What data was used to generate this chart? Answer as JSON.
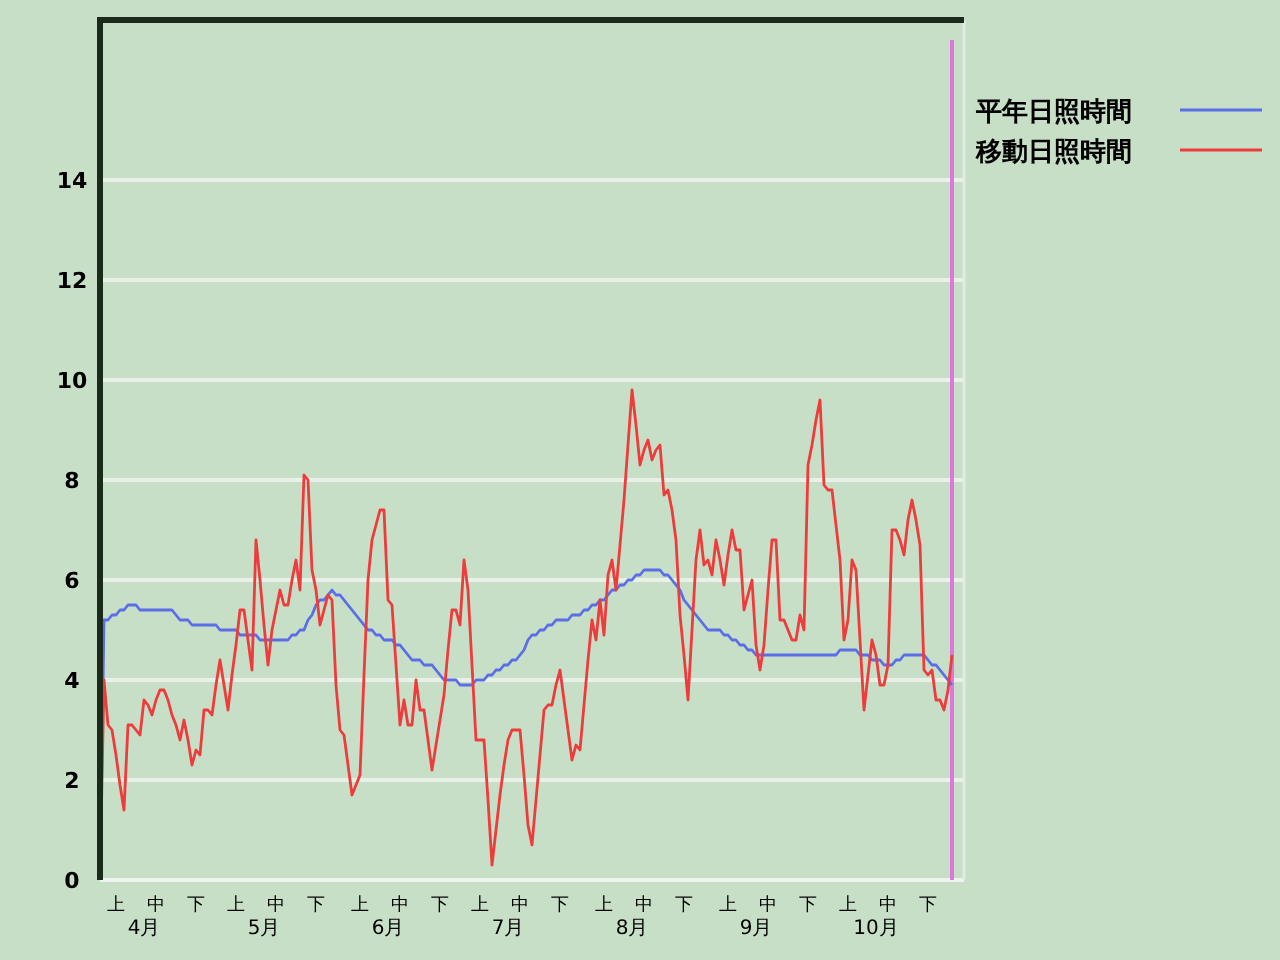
{
  "chart_data": {
    "type": "line",
    "ylim": [
      0,
      17.2
    ],
    "yticks": [
      0,
      2,
      4,
      6,
      8,
      10,
      12,
      14
    ],
    "categories": [
      null,
      null,
      null,
      null,
      "上",
      null,
      null,
      null,
      null,
      null,
      null,
      null,
      null,
      null,
      "中",
      null,
      null,
      null,
      null,
      null,
      null,
      null,
      null,
      null,
      "下",
      null,
      null,
      null,
      null,
      null,
      null,
      null,
      null,
      null,
      "上",
      null,
      null,
      null,
      null,
      null,
      null,
      null,
      null,
      null,
      "中",
      null,
      null,
      null,
      null,
      null,
      null,
      null,
      null,
      null,
      "下",
      null,
      null,
      null,
      null,
      null,
      null,
      null,
      null,
      null,
      null,
      "上",
      null,
      null,
      null,
      null,
      null,
      null,
      null,
      null,
      null,
      "中",
      null,
      null,
      null,
      null,
      null,
      null,
      null,
      null,
      null,
      "下",
      null,
      null,
      null,
      null,
      null,
      null,
      null,
      null,
      null,
      "上",
      null,
      null,
      null,
      null,
      null,
      null,
      null,
      null,
      null,
      "中",
      null,
      null,
      null,
      null,
      null,
      null,
      null,
      null,
      null,
      "下",
      null,
      null,
      null,
      null,
      null,
      null,
      null,
      null,
      null,
      null,
      "上",
      null,
      null,
      null,
      null,
      null,
      null,
      null,
      null,
      null,
      "中",
      null,
      null,
      null,
      null,
      null,
      null,
      null,
      null,
      null,
      "下",
      null,
      null,
      null,
      null,
      null,
      null,
      null,
      null,
      null,
      null,
      "上",
      null,
      null,
      null,
      null,
      null,
      null,
      null,
      null,
      null,
      "中",
      null,
      null,
      null,
      null,
      null,
      null,
      null,
      null,
      null,
      "下",
      null,
      null,
      null,
      null,
      null,
      null,
      null,
      null,
      null,
      "上",
      null,
      null,
      null,
      null,
      null,
      null,
      null,
      null,
      null,
      "中",
      null,
      null,
      null,
      null,
      null,
      null,
      null,
      null,
      null,
      "下",
      null,
      null,
      null,
      null,
      null,
      null
    ],
    "annotations": [
      "4月",
      "5月",
      "6月",
      "7月",
      "8月",
      "9月",
      "10月"
    ],
    "grid": "y",
    "legend": "top right",
    "marker": "none",
    "line_style": "solid",
    "series": [
      {
        "name": "平年日照時間",
        "color": "#5a6ee8",
        "values": [
          0,
          5.2,
          5.2,
          5.3,
          5.3,
          5.4,
          5.4,
          5.5,
          5.5,
          5.5,
          5.4,
          5.4,
          5.4,
          5.4,
          5.4,
          5.4,
          5.4,
          5.4,
          5.4,
          5.3,
          5.2,
          5.2,
          5.2,
          5.1,
          5.1,
          5.1,
          5.1,
          5.1,
          5.1,
          5.1,
          5.0,
          5.0,
          5.0,
          5.0,
          5.0,
          4.9,
          4.9,
          4.9,
          4.9,
          4.9,
          4.8,
          4.8,
          4.8,
          4.8,
          4.8,
          4.8,
          4.8,
          4.8,
          4.9,
          4.9,
          5.0,
          5.0,
          5.2,
          5.3,
          5.5,
          5.6,
          5.6,
          5.7,
          5.8,
          5.7,
          5.7,
          5.6,
          5.5,
          5.4,
          5.3,
          5.2,
          5.1,
          5.0,
          5.0,
          4.9,
          4.9,
          4.8,
          4.8,
          4.8,
          4.7,
          4.7,
          4.6,
          4.5,
          4.4,
          4.4,
          4.4,
          4.3,
          4.3,
          4.3,
          4.2,
          4.1,
          4.0,
          4.0,
          4.0,
          4.0,
          3.9,
          3.9,
          3.9,
          3.9,
          4.0,
          4.0,
          4.0,
          4.1,
          4.1,
          4.2,
          4.2,
          4.3,
          4.3,
          4.4,
          4.4,
          4.5,
          4.6,
          4.8,
          4.9,
          4.9,
          5.0,
          5.0,
          5.1,
          5.1,
          5.2,
          5.2,
          5.2,
          5.2,
          5.3,
          5.3,
          5.3,
          5.4,
          5.4,
          5.5,
          5.5,
          5.6,
          5.6,
          5.7,
          5.8,
          5.8,
          5.9,
          5.9,
          6.0,
          6.0,
          6.1,
          6.1,
          6.2,
          6.2,
          6.2,
          6.2,
          6.2,
          6.1,
          6.1,
          6.0,
          5.9,
          5.8,
          5.6,
          5.5,
          5.4,
          5.3,
          5.2,
          5.1,
          5.0,
          5.0,
          5.0,
          5.0,
          4.9,
          4.9,
          4.8,
          4.8,
          4.7,
          4.7,
          4.6,
          4.6,
          4.5,
          4.5,
          4.5,
          4.5,
          4.5,
          4.5,
          4.5,
          4.5,
          4.5,
          4.5,
          4.5,
          4.5,
          4.5,
          4.5,
          4.5,
          4.5,
          4.5,
          4.5,
          4.5,
          4.5,
          4.5,
          4.6,
          4.6,
          4.6,
          4.6,
          4.6,
          4.5,
          4.5,
          4.5,
          4.4,
          4.4,
          4.4,
          4.3,
          4.3,
          4.3,
          4.4,
          4.4,
          4.5,
          4.5,
          4.5,
          4.5,
          4.5,
          4.5,
          4.4,
          4.3,
          4.3,
          4.2,
          4.1,
          4.0,
          3.9
        ]
      },
      {
        "name": "移動日照時間",
        "color": "#ee3c3c",
        "values": [
          0,
          4.0,
          3.1,
          3.0,
          2.5,
          1.9,
          1.4,
          3.1,
          3.1,
          3.0,
          2.9,
          3.6,
          3.5,
          3.3,
          3.6,
          3.8,
          3.8,
          3.6,
          3.3,
          3.1,
          2.8,
          3.2,
          2.8,
          2.3,
          2.6,
          2.5,
          3.4,
          3.4,
          3.3,
          3.9,
          4.4,
          3.9,
          3.4,
          4.1,
          4.7,
          5.4,
          5.4,
          4.8,
          4.2,
          6.8,
          6.0,
          5.1,
          4.3,
          5.0,
          5.4,
          5.8,
          5.5,
          5.5,
          6.0,
          6.4,
          5.8,
          8.1,
          8.0,
          6.2,
          5.8,
          5.1,
          5.4,
          5.7,
          5.6,
          3.9,
          3.0,
          2.9,
          2.3,
          1.7,
          1.9,
          2.1,
          4.1,
          6.0,
          6.8,
          7.1,
          7.4,
          7.4,
          5.6,
          5.5,
          4.3,
          3.1,
          3.6,
          3.1,
          3.1,
          4.0,
          3.4,
          3.4,
          2.8,
          2.2,
          2.7,
          3.2,
          3.7,
          4.6,
          5.4,
          5.4,
          5.1,
          6.4,
          5.8,
          4.3,
          2.8,
          2.8,
          2.8,
          1.6,
          0.3,
          1.0,
          1.7,
          2.3,
          2.8,
          3.0,
          3.0,
          3.0,
          2.1,
          1.1,
          0.7,
          1.6,
          2.5,
          3.4,
          3.5,
          3.5,
          3.9,
          4.2,
          3.6,
          3.0,
          2.4,
          2.7,
          2.6,
          3.5,
          4.4,
          5.2,
          4.8,
          5.6,
          4.9,
          6.1,
          6.4,
          5.8,
          6.7,
          7.6,
          8.7,
          9.8,
          9.1,
          8.3,
          8.6,
          8.8,
          8.4,
          8.6,
          8.7,
          7.7,
          7.8,
          7.4,
          6.8,
          5.3,
          4.5,
          3.6,
          5.0,
          6.4,
          7.0,
          6.3,
          6.4,
          6.1,
          6.8,
          6.4,
          5.9,
          6.5,
          7.0,
          6.6,
          6.6,
          5.4,
          5.7,
          6.0,
          4.7,
          4.2,
          4.7,
          5.8,
          6.8,
          6.8,
          5.2,
          5.2,
          5.0,
          4.8,
          4.8,
          5.3,
          5.0,
          8.3,
          8.7,
          9.2,
          9.6,
          7.9,
          7.8,
          7.8,
          7.1,
          6.4,
          4.8,
          5.2,
          6.4,
          6.2,
          4.8,
          3.4,
          4.1,
          4.8,
          4.5,
          3.9,
          3.9,
          4.3,
          7.0,
          7.0,
          6.8,
          6.5,
          7.2,
          7.6,
          7.2,
          6.7,
          4.2,
          4.1,
          4.2,
          3.6,
          3.6,
          3.4,
          3.8,
          4.5
        ]
      }
    ]
  }
}
